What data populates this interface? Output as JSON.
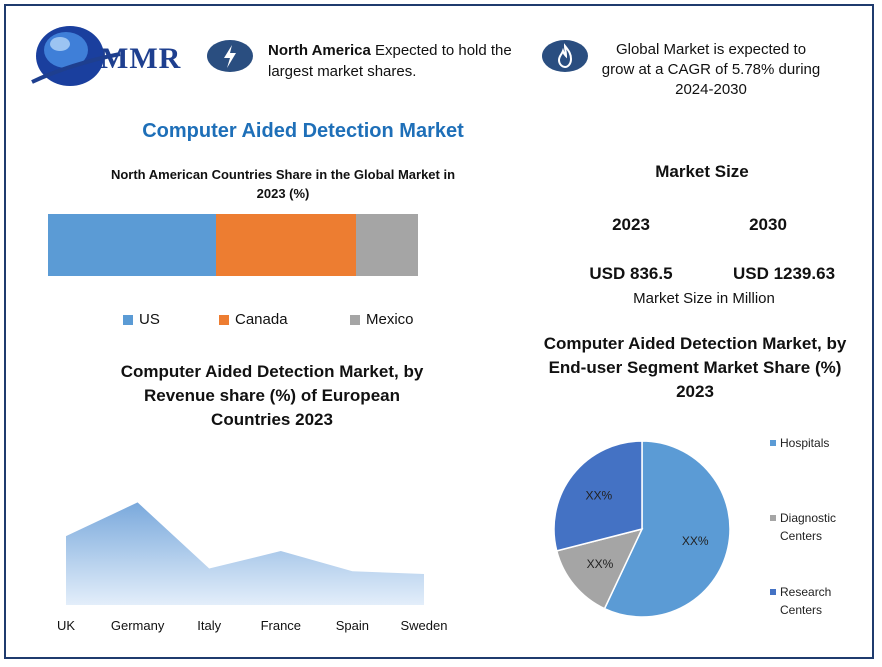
{
  "logo": {
    "text": "MMR"
  },
  "highlights": [
    {
      "bold": "North America",
      "text": " Expected to hold the largest market shares.",
      "icon": "lightning-icon"
    },
    {
      "text": "Global Market is expected to grow at a CAGR of 5.78% during 2024-2030",
      "icon": "flame-icon"
    }
  ],
  "title": "Computer Aided Detection Market",
  "market_size": {
    "heading": "Market Size",
    "years": [
      "2023",
      "2030"
    ],
    "values": [
      "USD 836.5",
      "USD 1239.63"
    ],
    "unit": "Market Size in Million"
  },
  "colors": {
    "us": "#5b9bd5",
    "canada": "#ed7d31",
    "mexico": "#a5a5a5",
    "accent": "#1e6fb8",
    "pie_hospitals": "#5b9bd5",
    "pie_diagnostic": "#a5a5a5",
    "pie_research": "#4472c4",
    "area": "#8db6e3"
  },
  "chart_data": [
    {
      "type": "bar",
      "subtype": "stacked-horizontal-100",
      "title": "North American Countries Share in the Global Market in 2023  (%)",
      "series": [
        {
          "name": "US",
          "value": 45.4
        },
        {
          "name": "Canada",
          "value": 37.8
        },
        {
          "name": "Mexico",
          "value": 16.8
        }
      ],
      "legend": "bottom"
    },
    {
      "type": "area",
      "title": "Computer Aided Detection Market, by Revenue share (%) of European Countries 2023",
      "categories": [
        "UK",
        "Germany",
        "Italy",
        "France",
        "Spain",
        "Sweden"
      ],
      "values": [
        51,
        76,
        27,
        40,
        25,
        23
      ],
      "ylim": [
        0,
        100
      ]
    },
    {
      "type": "pie",
      "title": "Computer Aided Detection Market, by  End-user Segment Market Share (%) 2023",
      "labels": [
        "Hospitals",
        "Diagnostic Centers",
        "Research Centers"
      ],
      "values": [
        57,
        14,
        29
      ],
      "data_labels": [
        "XX%",
        "XX%",
        "XX%"
      ],
      "legend": "right"
    }
  ]
}
